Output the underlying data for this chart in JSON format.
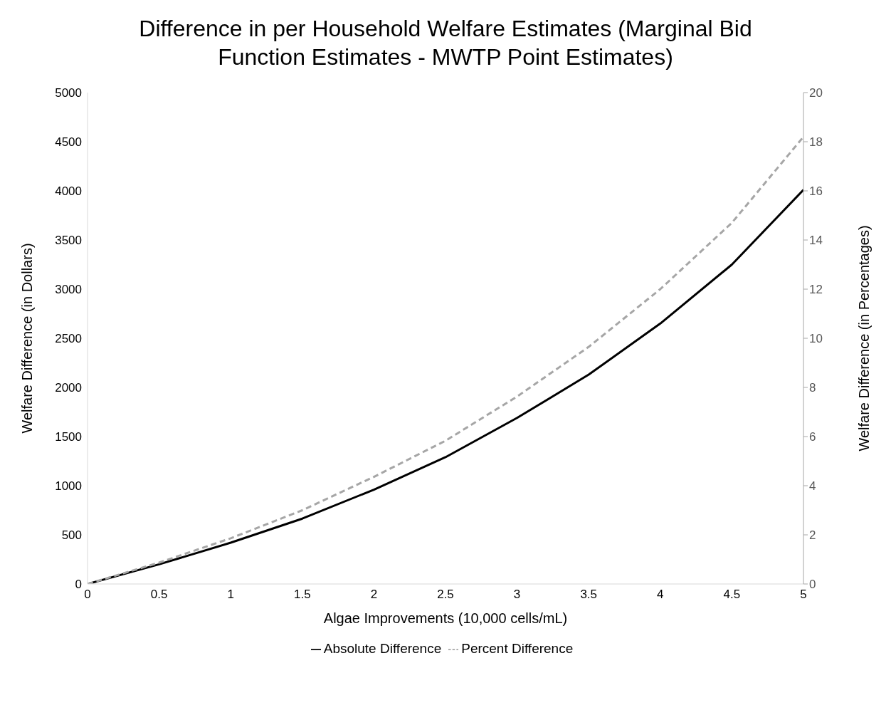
{
  "chart_data": {
    "type": "line",
    "title": "Difference in per Household Welfare Estimates (Marginal Bid Function Estimates - MWTP Point Estimates)",
    "xlabel": "Algae Improvements (10,000 cells/mL)",
    "ylabel": "Welfare Difference (in Dollars)",
    "y2label": "Welfare Difference (in Percentages)",
    "x": [
      0,
      0.5,
      1,
      1.5,
      2,
      2.5,
      3,
      3.5,
      4,
      4.5,
      5
    ],
    "series": [
      {
        "name": "Absolute Difference",
        "color": "#000000",
        "line_style": "solid",
        "values": [
          0,
          200,
          420,
          665,
          960,
          1290,
          1690,
          2130,
          2650,
          3250,
          4010
        ]
      },
      {
        "name": "Percent Difference",
        "color": "#a6a6a6",
        "line_style": "dashed",
        "axis": "y2",
        "values": [
          0,
          0.87,
          1.86,
          3.0,
          4.36,
          5.83,
          7.63,
          9.65,
          12.0,
          14.7,
          18.2
        ]
      }
    ],
    "xlim": [
      0,
      5
    ],
    "xticks": [
      0,
      0.5,
      1,
      1.5,
      2,
      2.5,
      3,
      3.5,
      4,
      4.5,
      5
    ],
    "ylim": [
      0,
      5000
    ],
    "yticks": [
      0,
      500,
      1000,
      1500,
      2000,
      2500,
      3000,
      3500,
      4000,
      4500,
      5000
    ],
    "y2lim": [
      0,
      20
    ],
    "y2ticks": [
      0,
      2,
      4,
      6,
      8,
      10,
      12,
      14,
      16,
      18,
      20
    ],
    "legend": "bottom",
    "marker": "none"
  }
}
